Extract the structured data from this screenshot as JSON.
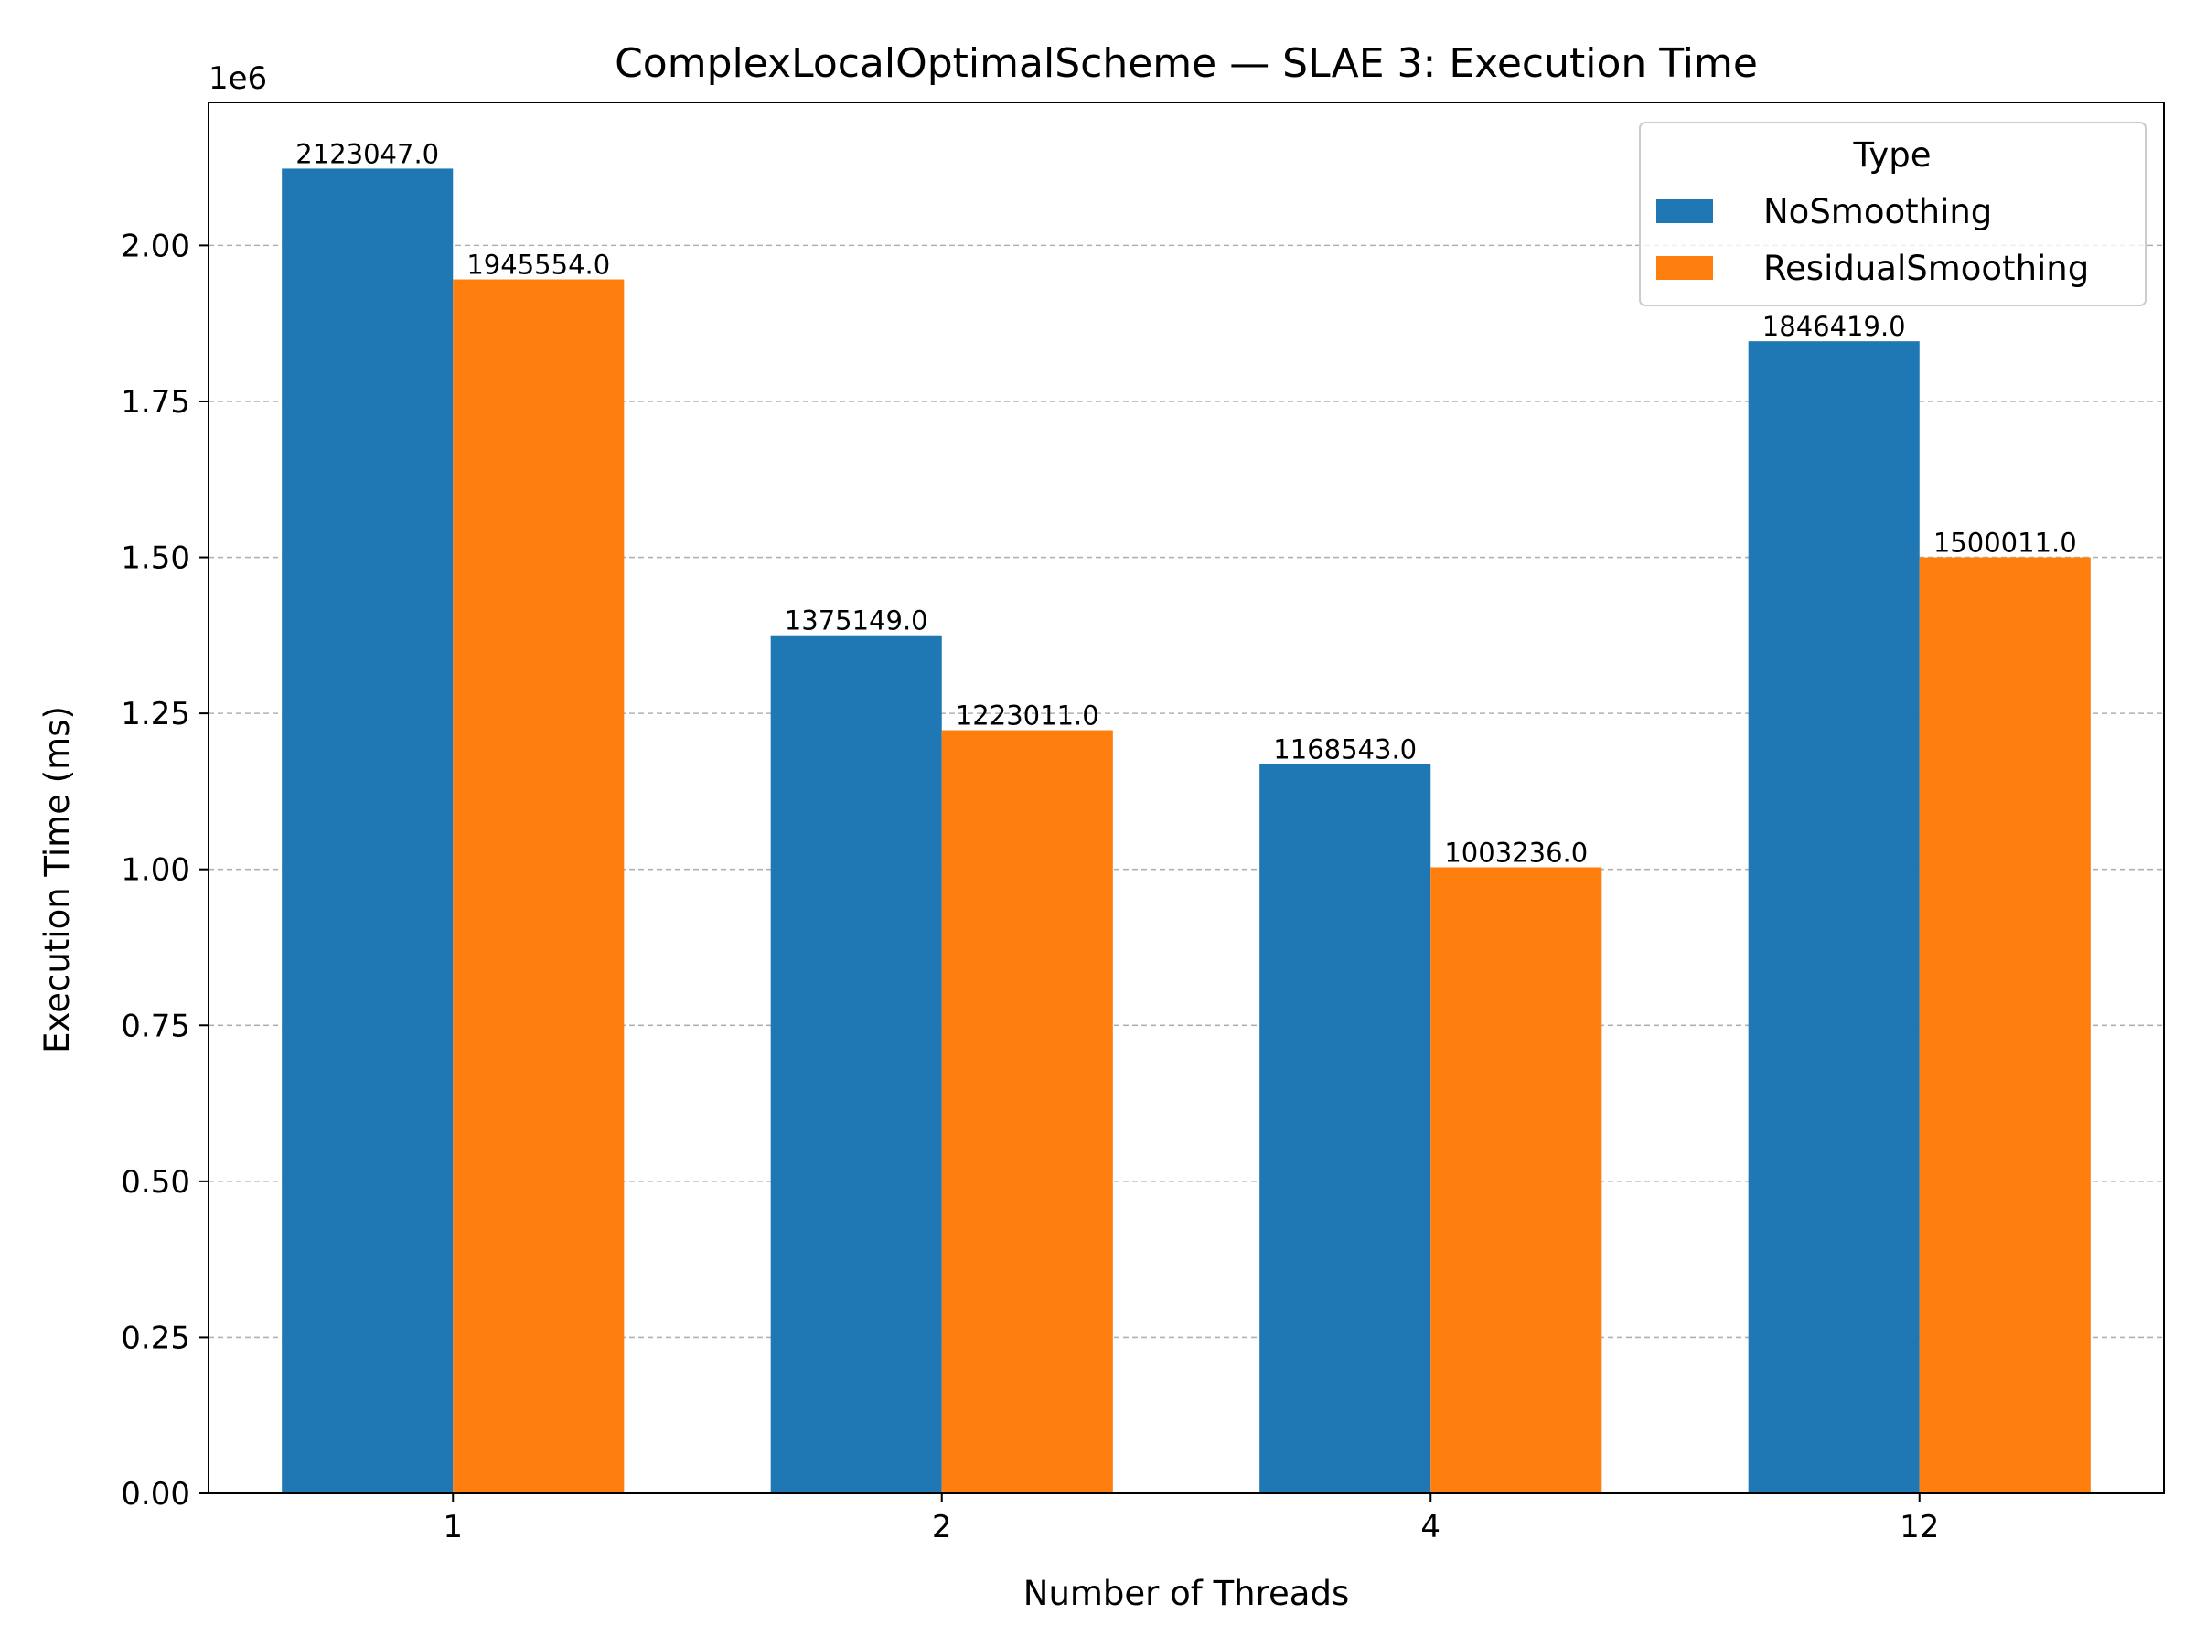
{
  "chart_data": {
    "type": "bar",
    "title": "ComplexLocalOptimalScheme — SLAE 3: Execution Time",
    "xlabel": "Number of Threads",
    "ylabel": "Execution Time (ms)",
    "categories": [
      "1",
      "2",
      "4",
      "12"
    ],
    "series": [
      {
        "name": "NoSmoothing",
        "color": "#1f77b4",
        "values": [
          2123047.0,
          1375149.0,
          1168543.0,
          1846419.0
        ],
        "labels": [
          "2123047.0",
          "1375149.0",
          "1168543.0",
          "1846419.0"
        ]
      },
      {
        "name": "ResidualSmoothing",
        "color": "#ff7f0e",
        "values": [
          1945554.0,
          1223011.0,
          1003236.0,
          1500011.0
        ],
        "labels": [
          "1945554.0",
          "1223011.0",
          "1003236.0",
          "1500011.0"
        ]
      }
    ],
    "ylim": [
      0,
      2229199
    ],
    "yticks": [
      0,
      250000,
      500000,
      750000,
      1000000,
      1250000,
      1500000,
      1750000,
      2000000
    ],
    "ytick_labels": [
      "0.00",
      "0.25",
      "0.50",
      "0.75",
      "1.00",
      "1.25",
      "1.50",
      "1.75",
      "2.00"
    ],
    "y_offset_label": "1e6",
    "grid": "y-dashed",
    "legend": {
      "title": "Type",
      "placement": "top-right"
    }
  }
}
